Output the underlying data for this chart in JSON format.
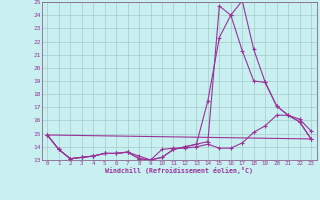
{
  "xlabel": "Windchill (Refroidissement éolien,°C)",
  "bg_color": "#c8f0f0",
  "grid_color": "#a8c8c8",
  "line_color": "#993399",
  "spine_color": "#886688",
  "xlim": [
    -0.5,
    23.5
  ],
  "ylim": [
    13,
    25
  ],
  "yticks": [
    13,
    14,
    15,
    16,
    17,
    18,
    19,
    20,
    21,
    22,
    23,
    24,
    25
  ],
  "xticks": [
    0,
    1,
    2,
    3,
    4,
    5,
    6,
    7,
    8,
    9,
    10,
    11,
    12,
    13,
    14,
    15,
    16,
    17,
    18,
    19,
    20,
    21,
    22,
    23
  ],
  "line1_x": [
    0,
    1,
    2,
    3,
    4,
    5,
    6,
    7,
    8,
    9,
    10,
    11,
    12,
    13,
    14,
    15,
    16,
    17,
    18,
    19,
    20,
    21,
    22,
    23
  ],
  "line1_y": [
    14.9,
    13.8,
    13.1,
    13.2,
    13.3,
    13.5,
    13.5,
    13.6,
    13.3,
    13.0,
    13.8,
    13.9,
    13.9,
    14.0,
    14.2,
    13.9,
    13.9,
    14.3,
    15.1,
    15.6,
    16.4,
    16.4,
    16.1,
    15.2
  ],
  "line2_x": [
    0,
    1,
    2,
    3,
    4,
    5,
    6,
    7,
    8,
    9,
    10,
    11,
    12,
    13,
    14,
    15,
    16,
    17,
    18,
    19,
    20,
    21,
    22,
    23
  ],
  "line2_y": [
    14.9,
    13.8,
    13.1,
    13.2,
    13.3,
    13.5,
    13.5,
    13.6,
    13.1,
    13.0,
    13.2,
    13.8,
    14.0,
    14.2,
    17.5,
    22.3,
    24.0,
    25.1,
    21.4,
    18.9,
    17.1,
    16.4,
    15.9,
    14.6
  ],
  "line3_x": [
    0,
    1,
    2,
    3,
    4,
    5,
    6,
    7,
    8,
    9,
    10,
    11,
    12,
    13,
    14,
    15,
    16,
    17,
    18,
    19,
    20,
    21,
    22,
    23
  ],
  "line3_y": [
    14.9,
    13.8,
    13.1,
    13.2,
    13.3,
    13.5,
    13.5,
    13.6,
    13.1,
    13.0,
    13.2,
    13.8,
    14.0,
    14.2,
    14.4,
    24.7,
    24.0,
    21.3,
    19.0,
    18.9,
    17.1,
    16.4,
    15.9,
    14.6
  ],
  "line4_x": [
    0,
    23
  ],
  "line4_y": [
    14.9,
    14.6
  ]
}
